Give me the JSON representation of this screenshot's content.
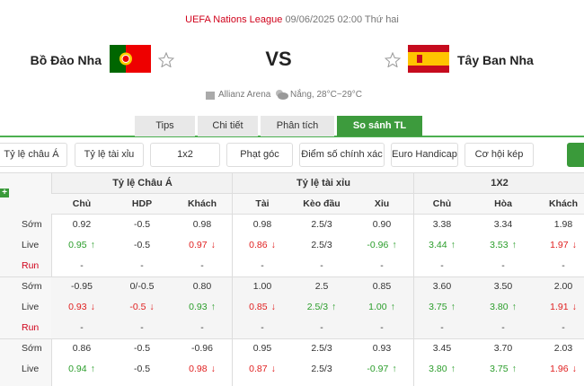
{
  "header": {
    "league": "UEFA Nations League",
    "datetime": "09/06/2025 02:00 Thứ hai",
    "home": "Bồ Đào Nha",
    "vs": "VS",
    "away": "Tây Ban Nha",
    "venue": "Allianz Arena",
    "weather": "Nắng, 28°C~29°C"
  },
  "tabs": {
    "items": [
      "Tips",
      "Chi tiết",
      "Phân tích",
      "So sánh TL"
    ],
    "active": 3
  },
  "filters": [
    "Tỷ lệ châu Á",
    "Tỷ lệ tài xỉu",
    "1x2",
    "Phạt góc",
    "Điểm số chính xác",
    "Euro Handicap",
    "Cơ hội kép"
  ],
  "table": {
    "groups": [
      "Tỷ lệ Châu Á",
      "Tỷ lệ tài xỉu",
      "1X2"
    ],
    "columns": [
      "Chủ",
      "HDP",
      "Khách",
      "Tài",
      "Kèo đầu",
      "Xỉu",
      "Chủ",
      "Hòa",
      "Khách"
    ],
    "rows": [
      {
        "label": "Sớm",
        "cells": [
          "0.92",
          "-0.5",
          "0.98",
          "0.98",
          "2.5/3",
          "0.90",
          "3.38",
          "3.34",
          "1.98"
        ],
        "trend": [
          null,
          null,
          null,
          null,
          null,
          null,
          null,
          null,
          null
        ]
      },
      {
        "label": "Live",
        "cells": [
          "0.95",
          "-0.5",
          "0.97",
          "0.86",
          "2.5/3",
          "-0.96",
          "3.44",
          "3.53",
          "1.97"
        ],
        "trend": [
          "up",
          null,
          "down",
          "down",
          null,
          "up",
          "up",
          "up",
          "down"
        ]
      },
      {
        "label": "Run",
        "cells": [
          "-",
          "-",
          "-",
          "-",
          "-",
          "-",
          "-",
          "-",
          "-"
        ],
        "trend": [
          null,
          null,
          null,
          null,
          null,
          null,
          null,
          null,
          null
        ]
      },
      {
        "label": "Sớm",
        "cells": [
          "-0.95",
          "0/-0.5",
          "0.80",
          "1.00",
          "2.5",
          "0.85",
          "3.60",
          "3.50",
          "2.00"
        ],
        "trend": [
          null,
          null,
          null,
          null,
          null,
          null,
          null,
          null,
          null
        ]
      },
      {
        "label": "Live",
        "cells": [
          "0.93",
          "-0.5",
          "0.93",
          "0.85",
          "2.5/3",
          "1.00",
          "3.75",
          "3.80",
          "1.91"
        ],
        "trend": [
          "down",
          "down",
          "up",
          "down",
          "up",
          "up",
          "up",
          "up",
          "down"
        ]
      },
      {
        "label": "Run",
        "cells": [
          "-",
          "-",
          "-",
          "-",
          "-",
          "-",
          "-",
          "-",
          "-"
        ],
        "trend": [
          null,
          null,
          null,
          null,
          null,
          null,
          null,
          null,
          null
        ]
      },
      {
        "label": "Sớm",
        "cells": [
          "0.86",
          "-0.5",
          "-0.96",
          "0.95",
          "2.5/3",
          "0.93",
          "3.45",
          "3.70",
          "2.03"
        ],
        "trend": [
          null,
          null,
          null,
          null,
          null,
          null,
          null,
          null,
          null
        ]
      },
      {
        "label": "Live",
        "cells": [
          "0.94",
          "-0.5",
          "0.98",
          "0.87",
          "2.5/3",
          "-0.97",
          "3.80",
          "3.75",
          "1.96"
        ],
        "trend": [
          "up",
          null,
          "down",
          "down",
          null,
          "up",
          "up",
          "up",
          "down"
        ]
      }
    ]
  }
}
